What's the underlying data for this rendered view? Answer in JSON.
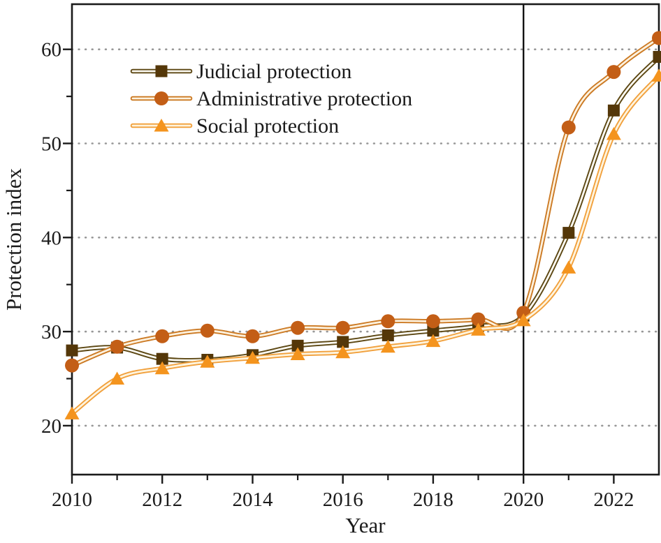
{
  "figure": {
    "background": "#ffffff",
    "text_color": "#1b1b1b",
    "frame_color": "#1a1a1a",
    "grid_color": "#979797",
    "vline_color": "#111111"
  },
  "chart_data": {
    "type": "line",
    "title": "",
    "xlabel": "Year",
    "ylabel": "Protection index",
    "x": [
      2010,
      2011,
      2012,
      2013,
      2014,
      2015,
      2016,
      2017,
      2018,
      2019,
      2020,
      2021,
      2022,
      2023
    ],
    "series": [
      {
        "name": "Judicial protection",
        "marker": "square",
        "line_color": "#5c4713",
        "marker_color": "#543709",
        "core_color": "#fcfaf3",
        "values": [
          28.0,
          28.3,
          27.1,
          27.0,
          27.5,
          28.5,
          28.9,
          29.6,
          30.1,
          30.6,
          31.7,
          40.5,
          53.5,
          59.2
        ]
      },
      {
        "name": "Administrative protection",
        "marker": "circle",
        "line_color": "#cc7a24",
        "marker_color": "#c35e16",
        "core_color": "#fdf2df",
        "values": [
          26.4,
          28.4,
          29.5,
          30.1,
          29.5,
          30.4,
          30.4,
          31.1,
          31.1,
          31.3,
          32.0,
          51.7,
          57.6,
          61.2
        ]
      },
      {
        "name": "Social protection",
        "marker": "triangle",
        "line_color": "#f1a03c",
        "marker_color": "#f4941e",
        "core_color": "#fef4de",
        "values": [
          21.3,
          25.0,
          26.1,
          26.8,
          27.2,
          27.6,
          27.8,
          28.4,
          29.0,
          30.2,
          31.2,
          36.8,
          51.0,
          57.2
        ]
      }
    ],
    "xticks": [
      2010,
      2012,
      2014,
      2016,
      2018,
      2020,
      2022
    ],
    "xticks_minor": [
      2011,
      2013,
      2015,
      2017,
      2019,
      2021
    ],
    "yticks": [
      20,
      30,
      40,
      50,
      60
    ],
    "yticks_minor": [
      25,
      35,
      45,
      55
    ],
    "xlim": [
      2010,
      2023
    ],
    "ylim": [
      14.8,
      64.8
    ],
    "grid": "horizontal-dotted",
    "legend_position": "upper-left-inside",
    "vline_x": 2020
  }
}
